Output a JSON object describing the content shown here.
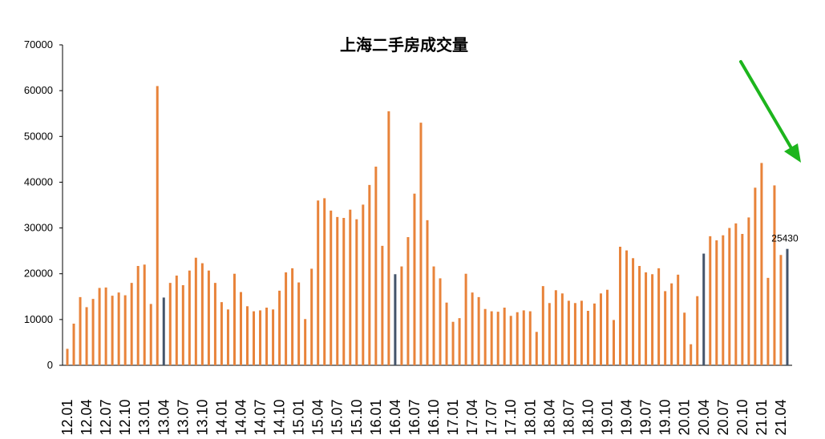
{
  "chart_data": {
    "type": "bar",
    "title": "上海二手房成交量",
    "ylim": [
      0,
      70000
    ],
    "y_ticks": [
      "0",
      "10000",
      "20000",
      "30000",
      "40000",
      "50000",
      "60000",
      "70000"
    ],
    "x_tick_labels": [
      "12.01",
      "12.04",
      "12.07",
      "12.10",
      "13.01",
      "13.04",
      "13.07",
      "13.10",
      "14.01",
      "14.04",
      "14.07",
      "14.10",
      "15.01",
      "15.04",
      "15.07",
      "15.10",
      "16.01",
      "16.04",
      "16.07",
      "16.10",
      "17.01",
      "17.04",
      "17.07",
      "17.10",
      "18.01",
      "18.04",
      "18.07",
      "18.10",
      "19.01",
      "19.04",
      "19.07",
      "19.10",
      "20.01",
      "20.04",
      "20.07",
      "20.10",
      "21.01",
      "21.04"
    ],
    "start_month": "12.01",
    "values": [
      3600,
      9100,
      14900,
      12700,
      14500,
      16900,
      17000,
      15200,
      15900,
      15300,
      18000,
      21700,
      22000,
      13400,
      61000,
      14800,
      18000,
      19600,
      17500,
      20700,
      23500,
      22300,
      20700,
      18000,
      13800,
      12200,
      20000,
      16000,
      12900,
      11800,
      12000,
      12600,
      12200,
      16300,
      20300,
      21200,
      18100,
      10100,
      21100,
      36000,
      36500,
      33800,
      32400,
      32200,
      34000,
      31900,
      35100,
      39400,
      43400,
      26100,
      55500,
      19900,
      21600,
      28000,
      37500,
      53000,
      31700,
      21600,
      19000,
      13700,
      9500,
      10300,
      20000,
      15900,
      14900,
      12300,
      11800,
      11700,
      12600,
      10800,
      11600,
      12000,
      11800,
      7300,
      17300,
      13600,
      16400,
      15700,
      14100,
      13600,
      14100,
      11900,
      13500,
      15700,
      16500,
      9900,
      25900,
      25100,
      23400,
      21700,
      20300,
      19900,
      21200,
      16200,
      17900,
      19800,
      11500,
      4600,
      15100,
      24400,
      28200,
      27300,
      28400,
      30000,
      31000,
      28700,
      32300,
      38800,
      44200,
      19100,
      39300,
      24100,
      25430
    ],
    "highlight_months": [
      "13.04",
      "16.04",
      "20.04",
      "21.05"
    ],
    "data_labels": [
      {
        "month": "21.05",
        "text": "25430"
      }
    ],
    "colors": {
      "bar": "#E8833A",
      "highlight": "#44546A",
      "arrow": "#1DB51D"
    },
    "annotation": "green-down-right-arrow",
    "grid": false,
    "legend": "none"
  }
}
